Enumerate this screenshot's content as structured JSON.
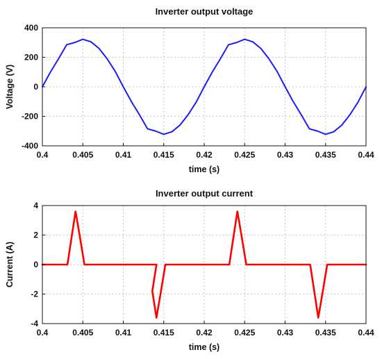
{
  "chart_data": [
    {
      "type": "line",
      "title": "Inverter output voltage",
      "xlabel": "time (s)",
      "ylabel": "Voltage (V)",
      "xlim": [
        0.4,
        0.44
      ],
      "ylim": [
        -400,
        400
      ],
      "xticks": [
        0.4,
        0.405,
        0.41,
        0.415,
        0.42,
        0.425,
        0.43,
        0.435,
        0.44
      ],
      "xtick_labels": [
        "0.4",
        "0.405",
        "0.41",
        "0.415",
        "0.42",
        "0.425",
        "0.43",
        "0.435",
        "0.44"
      ],
      "yticks": [
        -400,
        -200,
        0,
        200,
        400
      ],
      "ytick_labels": [
        "-400",
        "-200",
        "0",
        "200",
        "400"
      ],
      "grid": true,
      "series": [
        {
          "color": "#1a1aff",
          "x": [
            0.4,
            0.401,
            0.402,
            0.403,
            0.404,
            0.405,
            0.406,
            0.407,
            0.408,
            0.409,
            0.41,
            0.411,
            0.412,
            0.413,
            0.414,
            0.415,
            0.416,
            0.417,
            0.418,
            0.419,
            0.42,
            0.421,
            0.422,
            0.423,
            0.424,
            0.425,
            0.426,
            0.427,
            0.428,
            0.429,
            0.43,
            0.431,
            0.432,
            0.433,
            0.434,
            0.435,
            0.436,
            0.437,
            0.438,
            0.439,
            0.44
          ],
          "y": [
            0,
            100,
            190,
            285,
            300,
            322,
            305,
            260,
            190,
            105,
            0,
            -100,
            -190,
            -285,
            -300,
            -322,
            -305,
            -260,
            -190,
            -105,
            0,
            100,
            190,
            285,
            300,
            322,
            305,
            260,
            190,
            105,
            0,
            -100,
            -190,
            -285,
            -300,
            -322,
            -305,
            -260,
            -190,
            -105,
            0
          ]
        }
      ]
    },
    {
      "type": "line",
      "title": "Inverter output current",
      "xlabel": "time (s)",
      "ylabel": "Current (A)",
      "xlim": [
        0.4,
        0.44
      ],
      "ylim": [
        -4,
        4
      ],
      "xticks": [
        0.4,
        0.405,
        0.41,
        0.415,
        0.42,
        0.425,
        0.43,
        0.435,
        0.44
      ],
      "xtick_labels": [
        "0.4",
        "0.405",
        "0.41",
        "0.415",
        "0.42",
        "0.425",
        "0.43",
        "0.435",
        "0.44"
      ],
      "yticks": [
        -4,
        -2,
        0,
        2,
        4
      ],
      "ytick_labels": [
        "-4",
        "-2",
        "0",
        "2",
        "4"
      ],
      "grid": true,
      "series": [
        {
          "color": "#ff0000",
          "x": [
            0.4,
            0.4031,
            0.4036,
            0.4041,
            0.4046,
            0.4052,
            0.4141,
            0.41359,
            0.4141,
            0.4146,
            0.4152,
            0.4231,
            0.4236,
            0.4241,
            0.4246,
            0.4252,
            0.4331,
            0.4336,
            0.4341,
            0.4346,
            0.4352,
            0.44
          ],
          "y": [
            0,
            0,
            1.8,
            3.6,
            2.0,
            0,
            0,
            -1.8,
            -3.6,
            -2.0,
            0,
            0,
            1.8,
            3.6,
            2.0,
            0,
            0,
            -1.8,
            -3.6,
            -2.0,
            0,
            0
          ]
        }
      ]
    }
  ]
}
